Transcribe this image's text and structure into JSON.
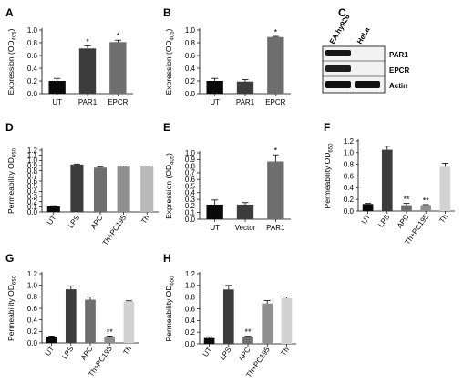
{
  "colors": {
    "black": "#0a0a0a",
    "dark_gray": "#3c3c3c",
    "mid_gray": "#6e6e6e",
    "gray": "#8f8f8f",
    "light_gray": "#b9b9b9",
    "lighter_gray": "#d2d2d2"
  },
  "blot": {
    "label": "C",
    "lanes": [
      "EA.hy926",
      "HeLa"
    ],
    "rows": [
      "PAR1",
      "EPCR",
      "Actin"
    ]
  },
  "chart_data": [
    {
      "id": "A",
      "label": "A",
      "type": "bar",
      "ylabel_main": "Expression (OD",
      "ylabel_sub": "405",
      "ylabel_close": ")",
      "ylim": [
        0,
        1.0
      ],
      "ticks": [
        "0.0",
        "0.2",
        "0.4",
        "0.6",
        "0.8",
        "1.0"
      ],
      "categories": [
        "UT",
        "PAR1",
        "EPCR"
      ],
      "values": [
        0.2,
        0.71,
        0.81
      ],
      "errors": [
        0.04,
        0.04,
        0.03
      ],
      "stars": [
        "",
        "*",
        "*"
      ],
      "colors": [
        "black",
        "dark_gray",
        "mid_gray"
      ],
      "rotate_labels": false
    },
    {
      "id": "B",
      "label": "B",
      "type": "bar",
      "ylabel_main": "Expression (OD",
      "ylabel_sub": "405",
      "ylabel_close": ")",
      "ylim": [
        0,
        1.0
      ],
      "ticks": [
        "0.0",
        "0.2",
        "0.4",
        "0.6",
        "0.8",
        "1.0"
      ],
      "categories": [
        "UT",
        "PAR1",
        "EPCR"
      ],
      "values": [
        0.2,
        0.19,
        0.89
      ],
      "errors": [
        0.04,
        0.03,
        0.01
      ],
      "stars": [
        "",
        "",
        "*"
      ],
      "colors": [
        "black",
        "dark_gray",
        "mid_gray"
      ],
      "rotate_labels": false
    },
    {
      "id": "D",
      "label": "D",
      "type": "bar",
      "ylabel_main": "Permeability OD",
      "ylabel_sub": "650",
      "ylabel_close": "",
      "ylim": [
        0,
        1.2
      ],
      "ticks": [
        "0.0",
        "0.1",
        "0.2",
        "0.3",
        "0.4",
        "0.5",
        "0.6",
        "0.7",
        "0.8",
        "0.9",
        "1.0",
        "1.1",
        "1.2"
      ],
      "categories": [
        "UT",
        "LPS",
        "APC",
        "Th+PC195",
        "Th"
      ],
      "values": [
        0.11,
        0.92,
        0.86,
        0.88,
        0.88
      ],
      "errors": [
        0.01,
        0.01,
        0.01,
        0.01,
        0.01
      ],
      "stars": [
        "",
        "",
        "",
        "",
        ""
      ],
      "colors": [
        "black",
        "dark_gray",
        "mid_gray",
        "gray",
        "light_gray"
      ],
      "rotate_labels": true
    },
    {
      "id": "E",
      "label": "E",
      "type": "bar",
      "ylabel_main": "Expression (OD",
      "ylabel_sub": "405",
      "ylabel_close": ")",
      "ylim": [
        0,
        1.0
      ],
      "ticks": [
        "0.0",
        "0.1",
        "0.2",
        "0.3",
        "0.4",
        "0.5",
        "0.6",
        "0.7",
        "0.8",
        "0.9",
        "1.0"
      ],
      "categories": [
        "UT",
        "Vector",
        "PAR1"
      ],
      "values": [
        0.22,
        0.22,
        0.87
      ],
      "errors": [
        0.07,
        0.03,
        0.1
      ],
      "stars": [
        "",
        "",
        "*"
      ],
      "colors": [
        "black",
        "dark_gray",
        "mid_gray"
      ],
      "rotate_labels": false
    },
    {
      "id": "F",
      "label": "F",
      "type": "bar",
      "ylabel_main": "Permeability OD",
      "ylabel_sub": "650",
      "ylabel_close": "",
      "ylim": [
        0,
        1.2
      ],
      "ticks": [
        "0.0",
        "0.2",
        "0.4",
        "0.6",
        "0.8",
        "1.0",
        "1.2"
      ],
      "categories": [
        "UT",
        "LPS",
        "APC",
        "Th+PC195",
        "Th"
      ],
      "values": [
        0.12,
        1.05,
        0.1,
        0.1,
        0.76
      ],
      "errors": [
        0.01,
        0.06,
        0.03,
        0.01,
        0.06
      ],
      "stars": [
        "",
        "",
        "**",
        "**",
        ""
      ],
      "colors": [
        "black",
        "dark_gray",
        "mid_gray",
        "gray",
        "lighter_gray"
      ],
      "rotate_labels": true
    },
    {
      "id": "G",
      "label": "G",
      "type": "bar",
      "ylabel_main": "Permeability OD",
      "ylabel_sub": "650",
      "ylabel_close": "",
      "ylim": [
        0,
        1.2
      ],
      "ticks": [
        "0.0",
        "0.2",
        "0.4",
        "0.6",
        "0.8",
        "1.0",
        "1.2"
      ],
      "categories": [
        "UT",
        "LPS",
        "APC",
        "Th+PC195",
        "Th"
      ],
      "values": [
        0.11,
        0.93,
        0.75,
        0.11,
        0.72
      ],
      "errors": [
        0.01,
        0.06,
        0.05,
        0.01,
        0.01
      ],
      "stars": [
        "",
        "",
        "",
        "**",
        ""
      ],
      "colors": [
        "black",
        "dark_gray",
        "mid_gray",
        "gray",
        "lighter_gray"
      ],
      "rotate_labels": true
    },
    {
      "id": "H",
      "label": "H",
      "type": "bar",
      "ylabel_main": "Permeability OD",
      "ylabel_sub": "650",
      "ylabel_close": "",
      "ylim": [
        0,
        1.2
      ],
      "ticks": [
        "0.0",
        "0.2",
        "0.4",
        "0.6",
        "0.8",
        "1.0",
        "1.2"
      ],
      "categories": [
        "UT",
        "LPS",
        "APC",
        "Th+PC195",
        "Th"
      ],
      "values": [
        0.1,
        0.93,
        0.12,
        0.69,
        0.78
      ],
      "errors": [
        0.02,
        0.07,
        0.01,
        0.05,
        0.02
      ],
      "stars": [
        "",
        "",
        "**",
        "",
        ""
      ],
      "colors": [
        "black",
        "dark_gray",
        "mid_gray",
        "gray",
        "lighter_gray"
      ],
      "rotate_labels": true
    }
  ]
}
